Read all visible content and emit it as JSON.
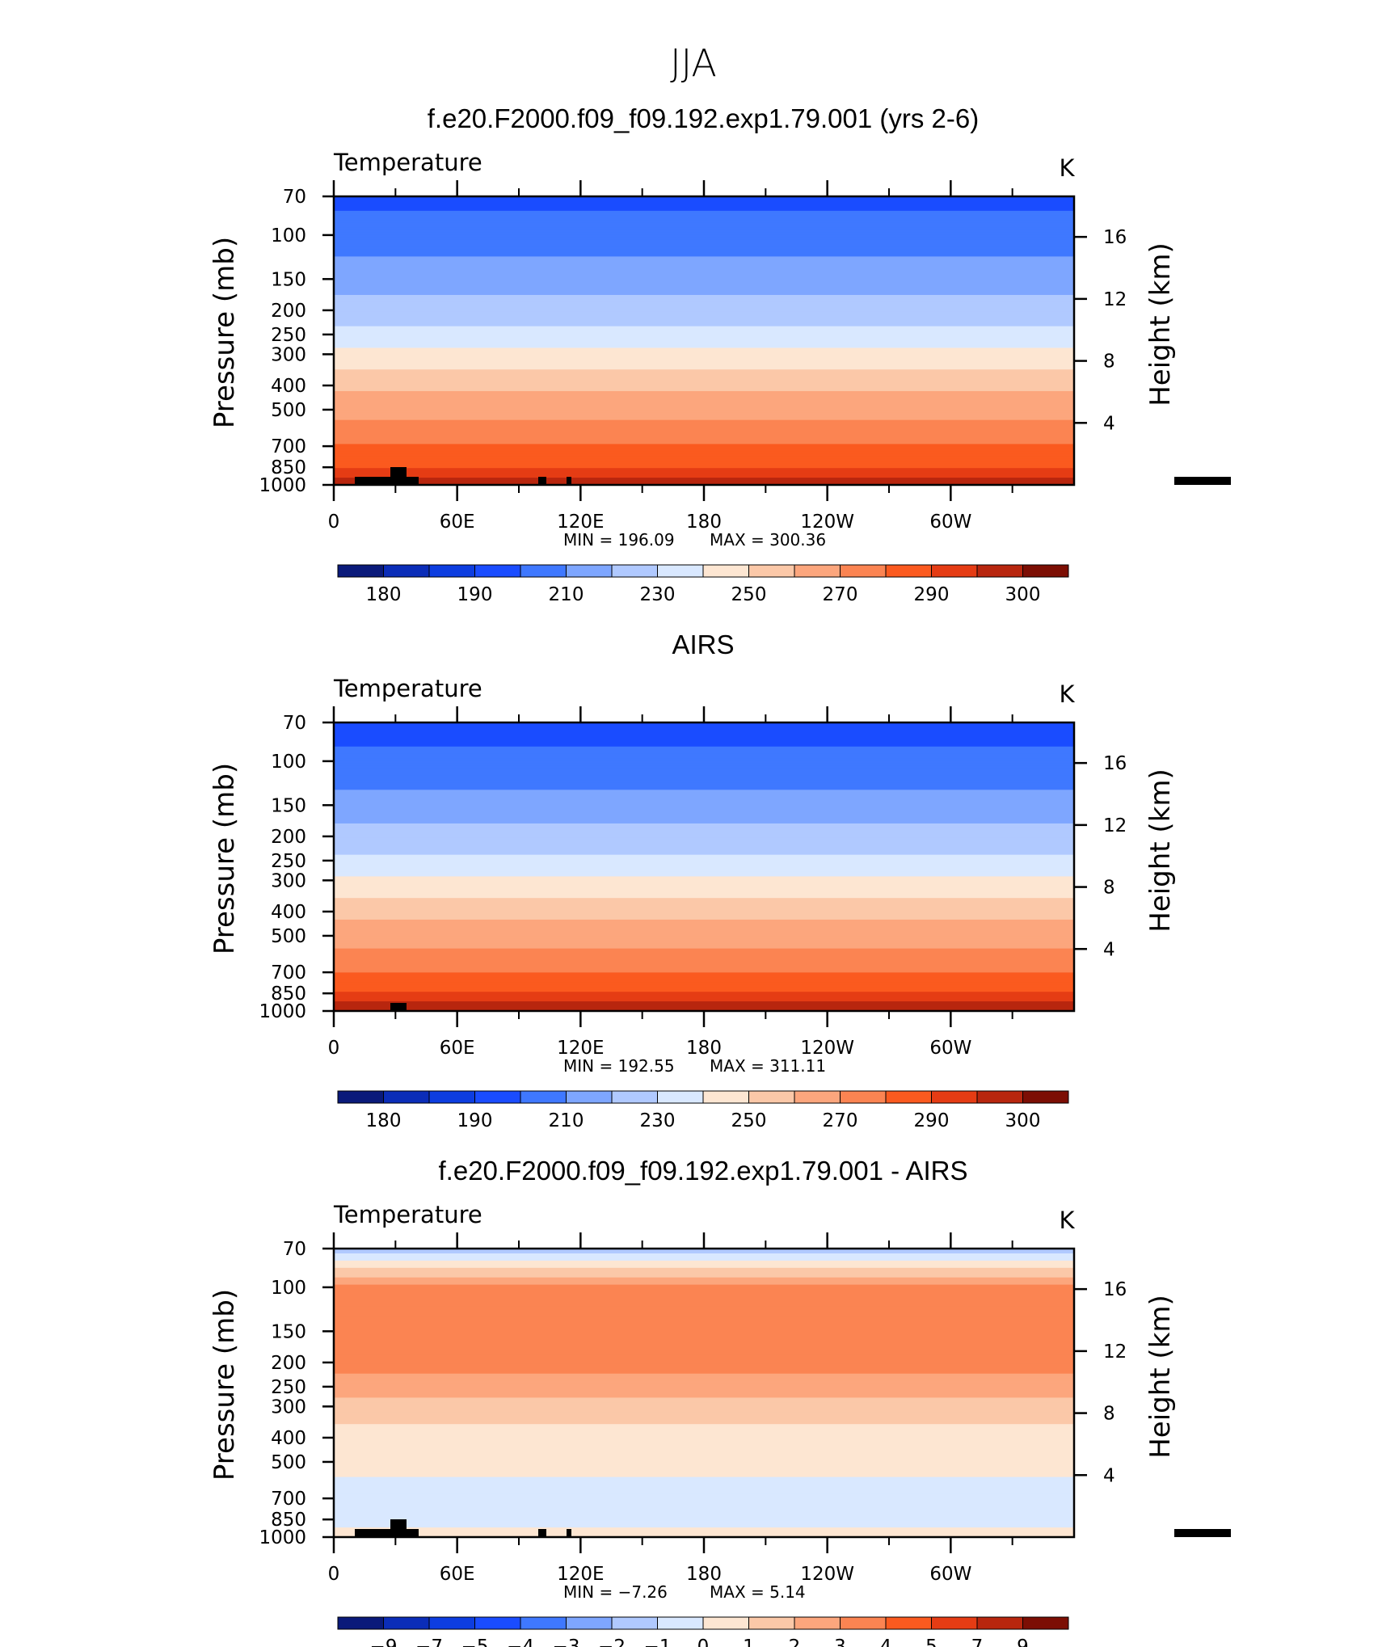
{
  "figure_title": "JJA",
  "palette": [
    "#0a1a7a",
    "#0b2db8",
    "#0d3de0",
    "#1a4cff",
    "#3f78ff",
    "#7ea6ff",
    "#b0c9ff",
    "#d9e8ff",
    "#fde6d2",
    "#fbc8a8",
    "#fca67d",
    "#fb8452",
    "#fb5a1f",
    "#e53c14",
    "#b8260e",
    "#7c0e04"
  ],
  "chart_data": [
    {
      "type": "heatmap",
      "title": "f.e20.F2000.f09_f09.192.exp1.79.001 (yrs 2-6)",
      "variable": "Temperature",
      "units": "K",
      "ylabel": "Pressure (mb)",
      "y2label": "Height (km)",
      "x_ticks": [
        "0",
        "60E",
        "120E",
        "180",
        "120W",
        "60W"
      ],
      "y_ticks": [
        "70",
        "100",
        "150",
        "200",
        "250",
        "300",
        "400",
        "500",
        "700",
        "850",
        "1000"
      ],
      "y2_ticks": [
        "16",
        "12",
        "8",
        "4"
      ],
      "min_label": "MIN =  196.09",
      "max_label": "MAX =  300.36",
      "colorbar_labels": [
        "180",
        "190",
        "210",
        "230",
        "250",
        "270",
        "290",
        "300"
      ],
      "levels": [
        170,
        180,
        185,
        190,
        200,
        210,
        220,
        230,
        240,
        250,
        260,
        270,
        280,
        290,
        295,
        300
      ],
      "profile": [
        {
          "p": 70,
          "v": 197
        },
        {
          "p": 100,
          "v": 205
        },
        {
          "p": 150,
          "v": 215
        },
        {
          "p": 200,
          "v": 225
        },
        {
          "p": 250,
          "v": 233
        },
        {
          "p": 300,
          "v": 243
        },
        {
          "p": 400,
          "v": 258
        },
        {
          "p": 500,
          "v": 266
        },
        {
          "p": 700,
          "v": 281
        },
        {
          "p": 850,
          "v": 290
        },
        {
          "p": 1000,
          "v": 299
        }
      ]
    },
    {
      "type": "heatmap",
      "title": "AIRS",
      "variable": "Temperature",
      "units": "K",
      "ylabel": "Pressure (mb)",
      "y2label": "Height (km)",
      "x_ticks": [
        "0",
        "60E",
        "120E",
        "180",
        "120W",
        "60W"
      ],
      "y_ticks": [
        "70",
        "100",
        "150",
        "200",
        "250",
        "300",
        "400",
        "500",
        "700",
        "850",
        "1000"
      ],
      "y2_ticks": [
        "16",
        "12",
        "8",
        "4"
      ],
      "min_label": "MIN =  192.55",
      "max_label": "MAX =  311.11",
      "colorbar_labels": [
        "180",
        "190",
        "210",
        "230",
        "250",
        "270",
        "290",
        "300"
      ],
      "levels": [
        170,
        180,
        185,
        190,
        200,
        210,
        220,
        230,
        240,
        250,
        260,
        270,
        280,
        290,
        295,
        300
      ],
      "profile": [
        {
          "p": 70,
          "v": 195
        },
        {
          "p": 100,
          "v": 203
        },
        {
          "p": 150,
          "v": 214
        },
        {
          "p": 200,
          "v": 224
        },
        {
          "p": 250,
          "v": 232
        },
        {
          "p": 300,
          "v": 242
        },
        {
          "p": 400,
          "v": 257
        },
        {
          "p": 500,
          "v": 265
        },
        {
          "p": 700,
          "v": 280
        },
        {
          "p": 850,
          "v": 291
        },
        {
          "p": 1000,
          "v": 300
        }
      ]
    },
    {
      "type": "heatmap",
      "title": "f.e20.F2000.f09_f09.192.exp1.79.001 - AIRS",
      "variable": "Temperature",
      "units": "K",
      "ylabel": "Pressure (mb)",
      "y2label": "Height (km)",
      "x_ticks": [
        "0",
        "60E",
        "120E",
        "180",
        "120W",
        "60W"
      ],
      "y_ticks": [
        "70",
        "100",
        "150",
        "200",
        "250",
        "300",
        "400",
        "500",
        "700",
        "850",
        "1000"
      ],
      "y2_ticks": [
        "16",
        "12",
        "8",
        "4"
      ],
      "min_label": "MIN =   −7.26",
      "max_label": "MAX =    5.14",
      "colorbar_labels": [
        "−9",
        "−7",
        "−5",
        "−4",
        "−3",
        "−2",
        "−1",
        "0",
        "1",
        "2",
        "3",
        "4",
        "5",
        "7",
        "9"
      ],
      "levels": [
        -11,
        -9,
        -7,
        -5,
        -4,
        -3,
        -2,
        -1,
        0,
        1,
        2,
        3,
        4,
        5,
        7,
        9
      ],
      "profile": [
        {
          "p": 70,
          "v": -2
        },
        {
          "p": 80,
          "v": 0.5
        },
        {
          "p": 100,
          "v": 3.2
        },
        {
          "p": 150,
          "v": 3.6
        },
        {
          "p": 200,
          "v": 3.4
        },
        {
          "p": 250,
          "v": 2.5
        },
        {
          "p": 300,
          "v": 1.6
        },
        {
          "p": 400,
          "v": 0.6
        },
        {
          "p": 500,
          "v": 0.3
        },
        {
          "p": 700,
          "v": -0.4
        },
        {
          "p": 850,
          "v": -0.2
        },
        {
          "p": 1000,
          "v": 0.2
        }
      ]
    }
  ]
}
